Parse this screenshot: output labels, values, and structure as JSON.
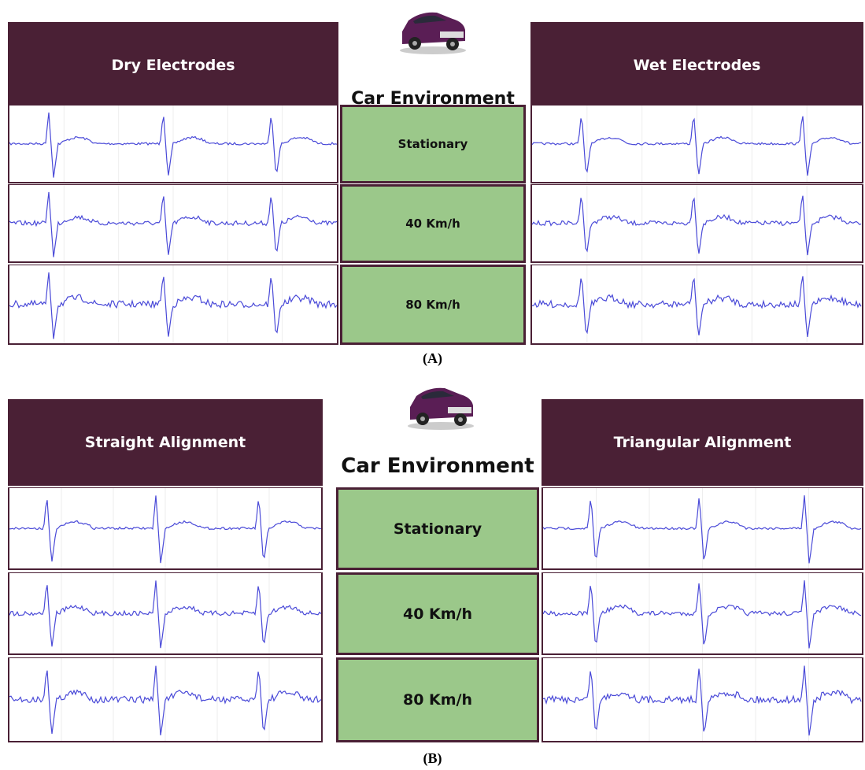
{
  "panels": [
    {
      "caption": "(A)",
      "left_title": "Dry Electrodes",
      "center_title": "Car Environment",
      "right_title": "Wet Electrodes",
      "conditions": [
        "Stationary",
        "40 Km/h",
        "80 Km/h"
      ]
    },
    {
      "caption": "(B)",
      "left_title": "Straight Alignment",
      "center_title": "Car Environment",
      "right_title": "Triangular Alignment",
      "conditions": [
        "Stationary",
        "40 Km/h",
        "80 Km/h"
      ]
    }
  ]
}
